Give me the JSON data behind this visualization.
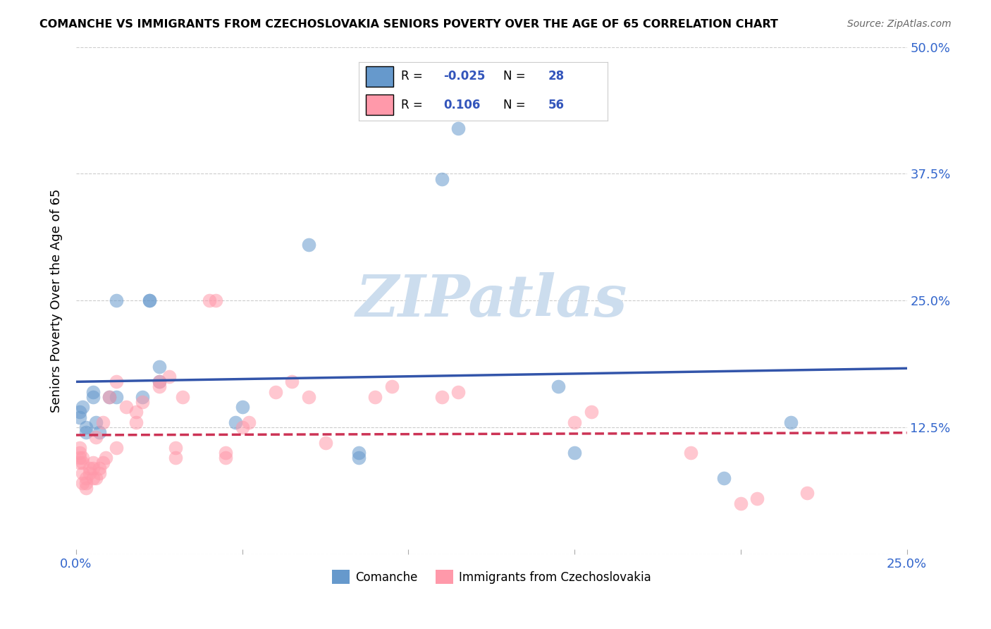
{
  "title": "COMANCHE VS IMMIGRANTS FROM CZECHOSLOVAKIA SENIORS POVERTY OVER THE AGE OF 65 CORRELATION CHART",
  "source": "Source: ZipAtlas.com",
  "ylabel": "Seniors Poverty Over the Age of 65",
  "xlim": [
    0.0,
    0.25
  ],
  "ylim": [
    0.0,
    0.5
  ],
  "xticks": [
    0.0,
    0.05,
    0.1,
    0.15,
    0.2,
    0.25
  ],
  "yticks": [
    0.0,
    0.125,
    0.25,
    0.375,
    0.5
  ],
  "legend_label1": "Comanche",
  "legend_label2": "Immigrants from Czechoslovakia",
  "R1": -0.025,
  "N1": 28,
  "R2": 0.106,
  "N2": 56,
  "color1": "#6699CC",
  "color2": "#FF99AA",
  "trendline_color1": "#3355AA",
  "trendline_color2": "#CC3355",
  "watermark": "ZIPatlas",
  "watermark_color": "#CCDDEE",
  "blue_x": [
    0.001,
    0.001,
    0.002,
    0.003,
    0.003,
    0.005,
    0.005,
    0.006,
    0.007,
    0.01,
    0.012,
    0.012,
    0.02,
    0.022,
    0.022,
    0.025,
    0.025,
    0.048,
    0.05,
    0.07,
    0.085,
    0.085,
    0.11,
    0.115,
    0.145,
    0.15,
    0.195,
    0.215
  ],
  "blue_y": [
    0.135,
    0.14,
    0.145,
    0.12,
    0.125,
    0.155,
    0.16,
    0.13,
    0.12,
    0.155,
    0.155,
    0.25,
    0.155,
    0.25,
    0.25,
    0.17,
    0.185,
    0.13,
    0.145,
    0.305,
    0.095,
    0.1,
    0.37,
    0.42,
    0.165,
    0.1,
    0.075,
    0.13
  ],
  "pink_x": [
    0.001,
    0.001,
    0.001,
    0.001,
    0.002,
    0.002,
    0.002,
    0.002,
    0.003,
    0.003,
    0.003,
    0.004,
    0.004,
    0.005,
    0.005,
    0.005,
    0.006,
    0.006,
    0.007,
    0.007,
    0.008,
    0.008,
    0.009,
    0.01,
    0.012,
    0.012,
    0.015,
    0.018,
    0.018,
    0.02,
    0.025,
    0.025,
    0.028,
    0.03,
    0.03,
    0.032,
    0.04,
    0.042,
    0.045,
    0.045,
    0.05,
    0.052,
    0.06,
    0.065,
    0.07,
    0.075,
    0.09,
    0.095,
    0.11,
    0.115,
    0.15,
    0.155,
    0.185,
    0.2,
    0.205,
    0.22
  ],
  "pink_y": [
    0.09,
    0.095,
    0.1,
    0.105,
    0.07,
    0.08,
    0.09,
    0.095,
    0.065,
    0.07,
    0.075,
    0.08,
    0.085,
    0.075,
    0.085,
    0.09,
    0.075,
    0.115,
    0.08,
    0.085,
    0.09,
    0.13,
    0.095,
    0.155,
    0.105,
    0.17,
    0.145,
    0.13,
    0.14,
    0.15,
    0.165,
    0.17,
    0.175,
    0.095,
    0.105,
    0.155,
    0.25,
    0.25,
    0.095,
    0.1,
    0.125,
    0.13,
    0.16,
    0.17,
    0.155,
    0.11,
    0.155,
    0.165,
    0.155,
    0.16,
    0.13,
    0.14,
    0.1,
    0.05,
    0.055,
    0.06
  ]
}
